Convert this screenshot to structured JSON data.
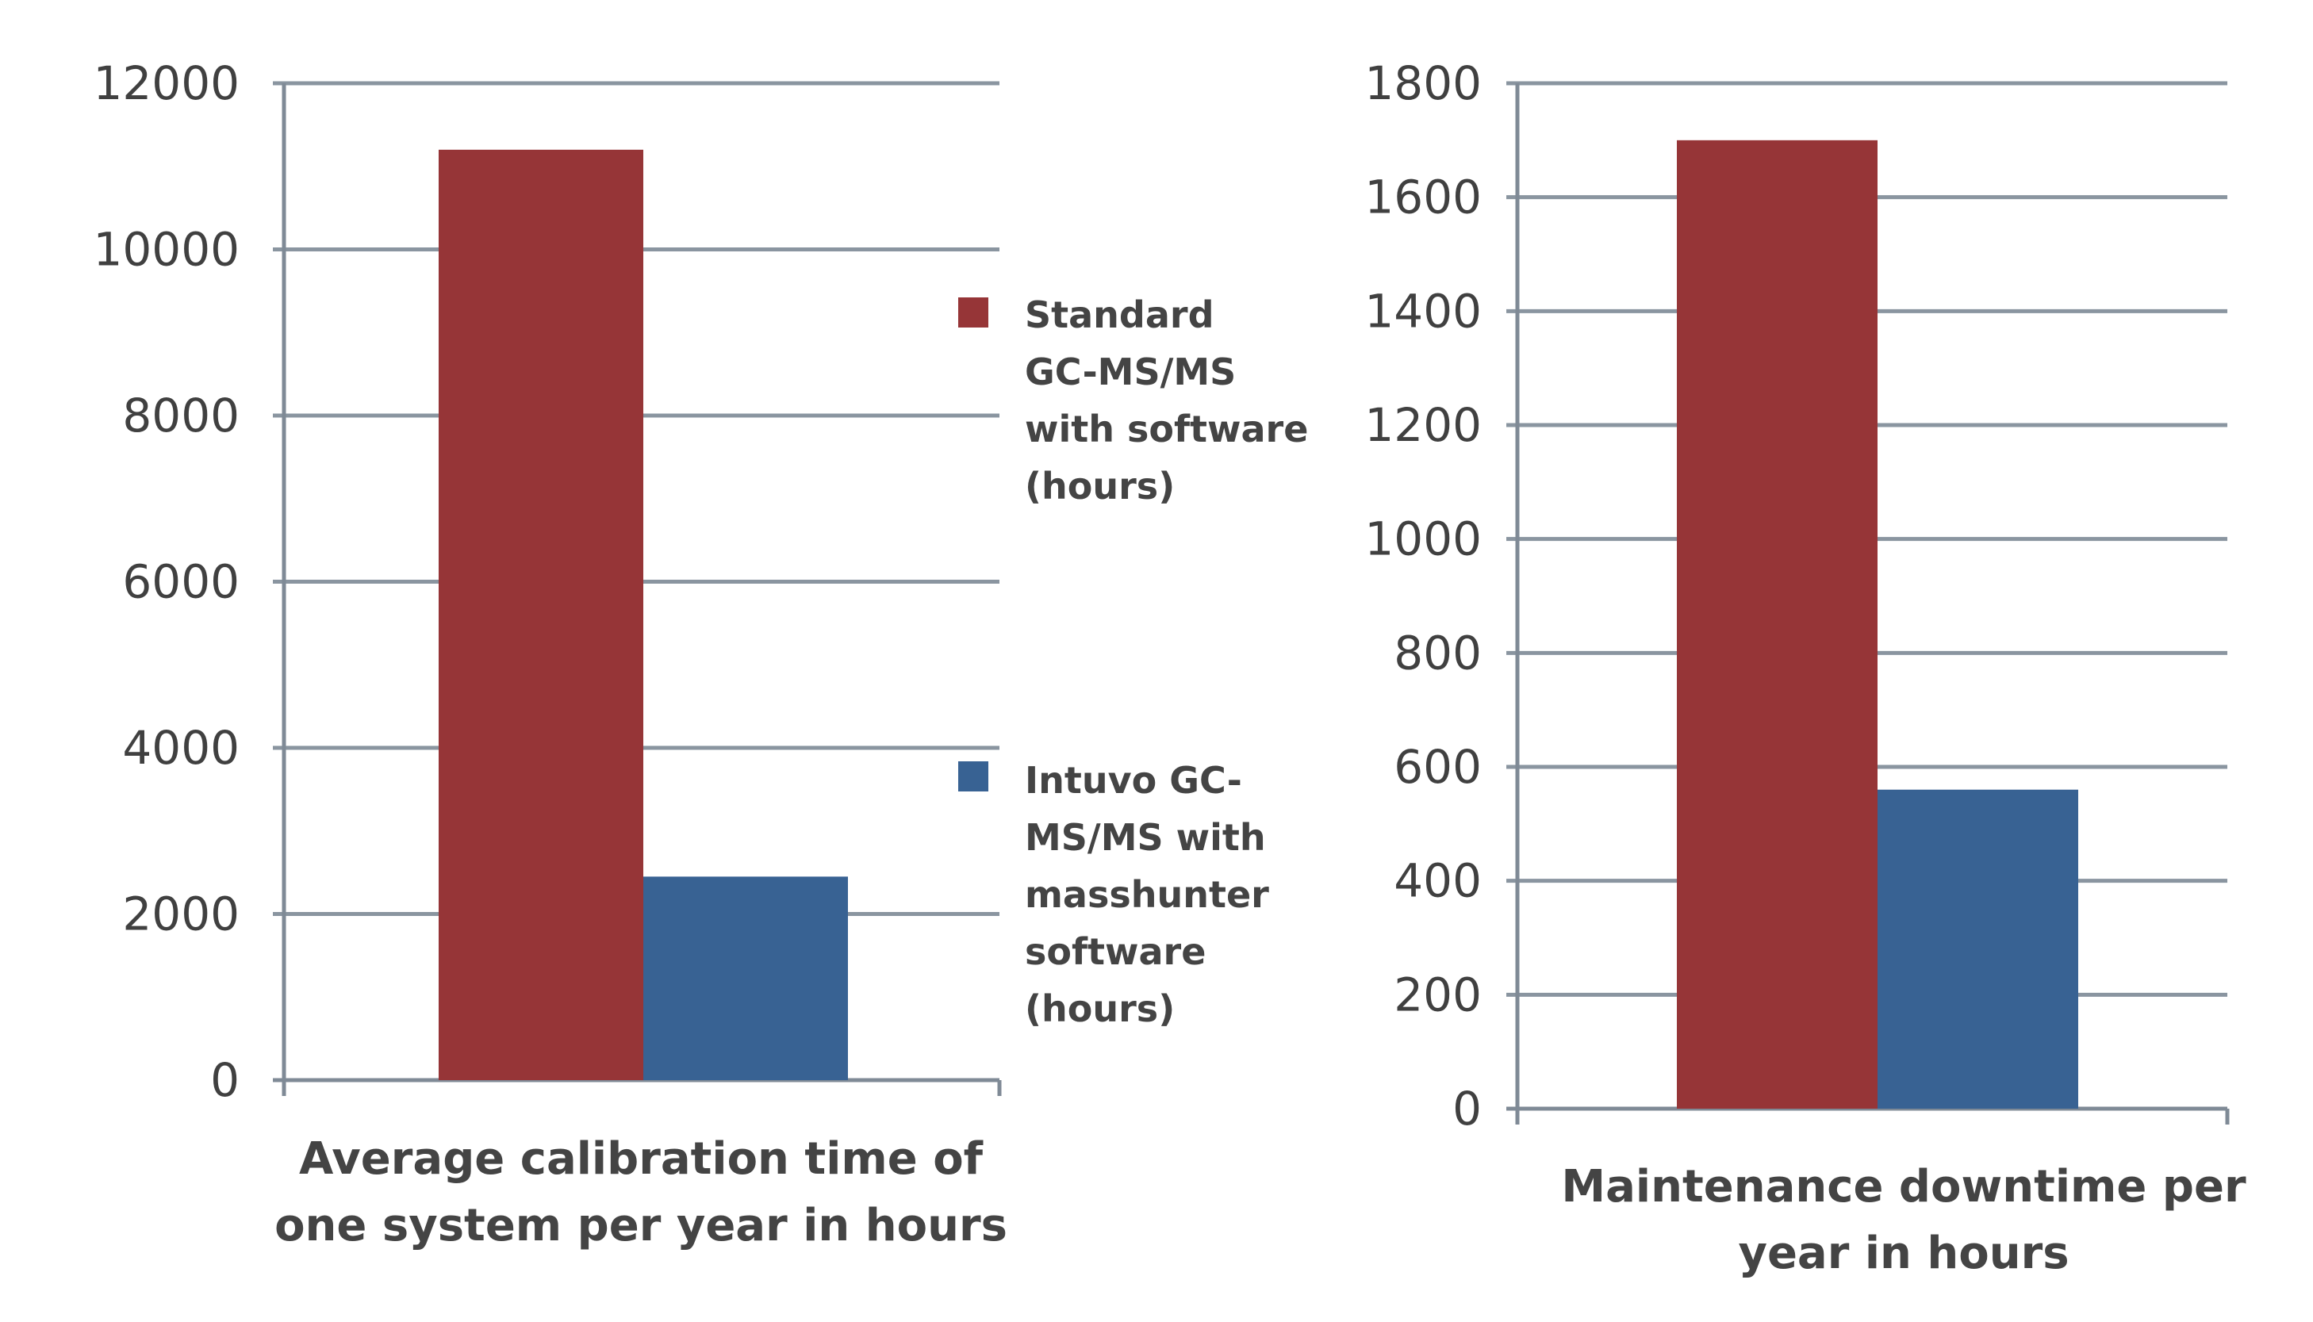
{
  "colors": {
    "standard": "#963537",
    "intuvo": "#386293",
    "grid": "#8a95a0",
    "axis": "#7f8a96"
  },
  "legend": {
    "series": [
      {
        "name": "Standard GC-MS/MS with software (hours)",
        "lines": [
          "Standard",
          "GC-MS/MS",
          "with software",
          "(hours)"
        ],
        "color": "#963537"
      },
      {
        "name": "Intuvo GC-MS/MS with masshunter software (hours)",
        "lines": [
          "Intuvo GC-",
          "MS/MS with",
          "masshunter",
          "software",
          "(hours)"
        ],
        "color": "#386293"
      }
    ]
  },
  "chart_data": [
    {
      "type": "bar",
      "categories": [
        "Average calibration time of one system per year in hours"
      ],
      "category_lines": [
        "Average calibration time of",
        "one system per year in hours"
      ],
      "series": [
        {
          "name": "Standard GC-MS/MS with software (hours)",
          "values": [
            11200
          ]
        },
        {
          "name": "Intuvo GC-MS/MS with masshunter software (hours)",
          "values": [
            2450
          ]
        }
      ],
      "yticks": [
        "0",
        "2000",
        "4000",
        "6000",
        "8000",
        "10000",
        "12000"
      ],
      "ylim": [
        0,
        12000
      ],
      "grid": true,
      "legend_position": "right"
    },
    {
      "type": "bar",
      "categories": [
        "Maintenance downtime per year in hours"
      ],
      "category_lines": [
        "Maintenance downtime per",
        "year in hours"
      ],
      "series": [
        {
          "name": "Standard GC-MS/MS with software (hours)",
          "values": [
            1700
          ]
        },
        {
          "name": "Intuvo GC-MS/MS with masshunter software (hours)",
          "values": [
            560
          ]
        }
      ],
      "yticks": [
        "0",
        "200",
        "400",
        "600",
        "800",
        "1000",
        "1200",
        "1400",
        "1600",
        "1800"
      ],
      "ylim": [
        0,
        1800
      ],
      "grid": true,
      "legend_position": "none"
    }
  ]
}
